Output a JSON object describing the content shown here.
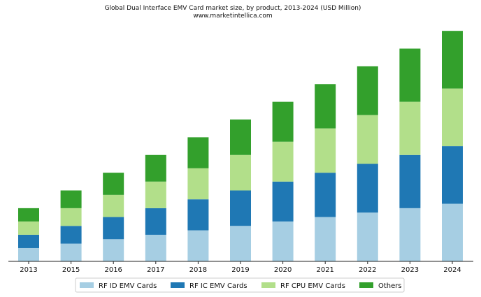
{
  "chart_data": {
    "type": "bar",
    "stacked": true,
    "title": "Global Dual Interface EMV Card market size, by product, 2013-2024 (USD Million)",
    "subtitle": "www.marketintellica.com",
    "xlabel": "",
    "ylabel": "",
    "y_axis_visible": false,
    "grid": false,
    "legend_position": "bottom",
    "ylim": [
      0,
      105
    ],
    "categories": [
      "2013",
      "2015",
      "2016",
      "2017",
      "2018",
      "2019",
      "2020",
      "2021",
      "2022",
      "2023",
      "2024"
    ],
    "series": [
      {
        "name": "RF ID EMV Cards",
        "color": "#a6cee3",
        "values": [
          6,
          8,
          10,
          12,
          14,
          16,
          18,
          20,
          22,
          24,
          26
        ]
      },
      {
        "name": "RF IC EMV Cards",
        "color": "#1f78b4",
        "values": [
          6,
          8,
          10,
          12,
          14,
          16,
          18,
          20,
          22,
          24,
          26
        ]
      },
      {
        "name": "RF CPU EMV Cards",
        "color": "#b2df8a",
        "values": [
          6,
          8,
          10,
          12,
          14,
          16,
          18,
          20,
          22,
          24,
          26
        ]
      },
      {
        "name": "Others",
        "color": "#33a02c",
        "values": [
          6,
          8,
          10,
          12,
          14,
          16,
          18,
          20,
          22,
          24,
          26
        ]
      }
    ]
  }
}
